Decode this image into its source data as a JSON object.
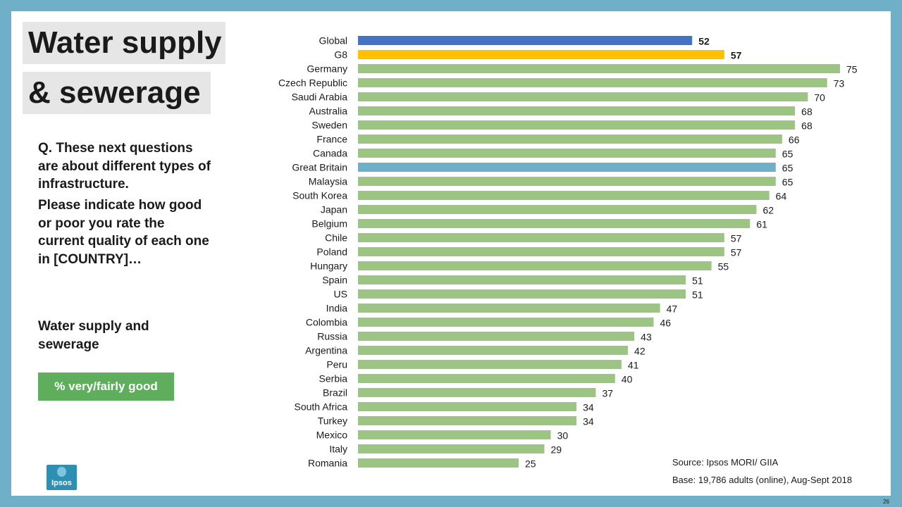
{
  "slide": {
    "title_line1": "Water supply",
    "title_line2": "& sewerage",
    "question_line1": "Q. These next questions are about different types of infrastructure.",
    "question_line2": "Please indicate how good or poor you rate the current quality of each one in [COUNTRY]…",
    "subject": "Water supply and sewerage",
    "measure_label": "% very/fairly good",
    "source": "Source:  Ipsos MORI/ GIIA",
    "base": "Base:  19,786 adults (online),  Aug-Sept 2018",
    "logo_text": "Ipsos",
    "page_number": "26"
  },
  "colors": {
    "global": "#4472c4",
    "g8": "#ffc000",
    "great_britain": "#6fb0c8",
    "country": "#9cc584",
    "frame": "#6fb0c8",
    "measure_badge": "#5fae5d"
  },
  "chart_data": {
    "type": "bar",
    "orientation": "horizontal",
    "title": "",
    "xlabel": "",
    "ylabel": "",
    "xlim": [
      0,
      75
    ],
    "grid": false,
    "categories": [
      "Global",
      "G8",
      "Germany",
      "Czech Republic",
      "Saudi Arabia",
      "Australia",
      "Sweden",
      "France",
      "Canada",
      "Great Britain",
      "Malaysia",
      "South Korea",
      "Japan",
      "Belgium",
      "Chile",
      "Poland",
      "Hungary",
      "Spain",
      "US",
      "India",
      "Colombia",
      "Russia",
      "Argentina",
      "Peru",
      "Serbia",
      "Brazil",
      "South Africa",
      "Turkey",
      "Mexico",
      "Italy",
      "Romania"
    ],
    "values": [
      52,
      57,
      75,
      73,
      70,
      68,
      68,
      66,
      65,
      65,
      65,
      64,
      62,
      61,
      57,
      57,
      55,
      51,
      51,
      47,
      46,
      43,
      42,
      41,
      40,
      37,
      34,
      34,
      30,
      29,
      25
    ],
    "highlight": {
      "Global": "global",
      "G8": "g8",
      "Great Britain": "great_britain"
    },
    "bold_labels": [
      "Global",
      "G8"
    ]
  }
}
